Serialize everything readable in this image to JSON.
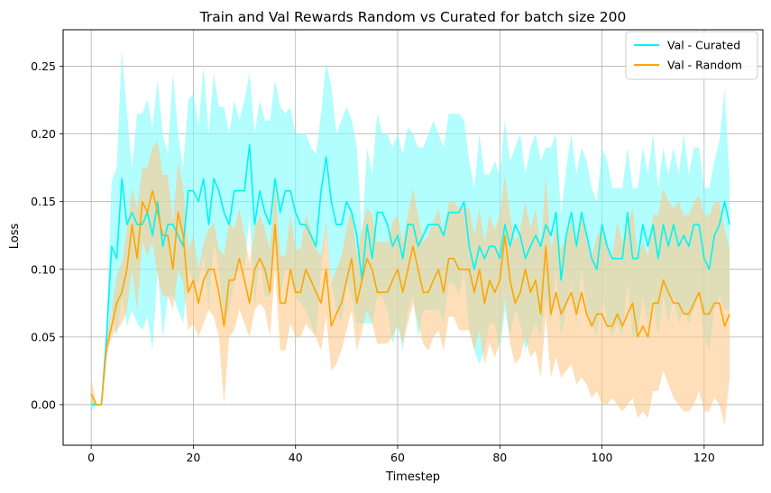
{
  "chart_data": {
    "type": "line",
    "title": "Train and Val Rewards Random vs Curated for batch size 200",
    "xlabel": "Timestep",
    "ylabel": "Loss",
    "xlim": [
      -5.5,
      131.5
    ],
    "ylim": [
      -0.03,
      0.277
    ],
    "xticks": [
      0,
      20,
      40,
      60,
      80,
      100,
      120
    ],
    "yticks": [
      0.0,
      0.05,
      0.1,
      0.15,
      0.2,
      0.25
    ],
    "grid": true,
    "legend_position": "top-right",
    "series": [
      {
        "name": "Val - Curated",
        "color": "#00f5f5",
        "band_color": "#7ffbfb",
        "values": [
          0.0,
          0.0,
          0.0,
          0.05,
          0.117,
          0.108,
          0.167,
          0.133,
          0.142,
          0.133,
          0.133,
          0.142,
          0.125,
          0.15,
          0.117,
          0.133,
          0.133,
          0.125,
          0.117,
          0.158,
          0.158,
          0.15,
          0.167,
          0.133,
          0.167,
          0.158,
          0.142,
          0.133,
          0.158,
          0.158,
          0.158,
          0.192,
          0.133,
          0.158,
          0.142,
          0.133,
          0.167,
          0.142,
          0.158,
          0.158,
          0.142,
          0.133,
          0.133,
          0.125,
          0.117,
          0.158,
          0.183,
          0.15,
          0.133,
          0.133,
          0.15,
          0.142,
          0.125,
          0.092,
          0.133,
          0.108,
          0.142,
          0.142,
          0.133,
          0.117,
          0.125,
          0.108,
          0.133,
          0.133,
          0.117,
          0.125,
          0.133,
          0.133,
          0.133,
          0.125,
          0.142,
          0.142,
          0.142,
          0.15,
          0.117,
          0.1,
          0.117,
          0.108,
          0.117,
          0.117,
          0.108,
          0.133,
          0.117,
          0.133,
          0.125,
          0.108,
          0.117,
          0.125,
          0.117,
          0.133,
          0.125,
          0.142,
          0.092,
          0.125,
          0.142,
          0.117,
          0.142,
          0.125,
          0.108,
          0.1,
          0.133,
          0.117,
          0.108,
          0.108,
          0.108,
          0.142,
          0.108,
          0.108,
          0.133,
          0.117,
          0.133,
          0.108,
          0.133,
          0.117,
          0.133,
          0.117,
          0.125,
          0.117,
          0.133,
          0.133,
          0.108,
          0.1,
          0.125,
          0.133,
          0.15,
          0.133
        ],
        "lower": [
          -0.005,
          0.0,
          0.0,
          0.04,
          0.07,
          0.05,
          0.08,
          0.058,
          0.07,
          0.06,
          0.055,
          0.065,
          0.04,
          0.1,
          0.05,
          0.08,
          0.08,
          0.07,
          0.06,
          0.1,
          0.09,
          0.09,
          0.11,
          0.07,
          0.12,
          0.1,
          0.06,
          0.07,
          0.09,
          0.11,
          0.1,
          0.14,
          0.07,
          0.11,
          0.08,
          0.08,
          0.12,
          0.08,
          0.1,
          0.1,
          0.08,
          0.075,
          0.07,
          0.06,
          0.05,
          0.1,
          0.13,
          0.09,
          0.07,
          0.06,
          0.09,
          0.08,
          0.06,
          0.06,
          0.06,
          0.06,
          0.08,
          0.08,
          0.07,
          0.045,
          0.06,
          0.04,
          0.07,
          0.08,
          0.05,
          0.07,
          0.07,
          0.07,
          0.07,
          0.06,
          0.09,
          0.09,
          0.08,
          0.1,
          0.055,
          0.04,
          0.03,
          0.04,
          0.06,
          0.06,
          0.04,
          0.07,
          0.05,
          0.07,
          0.06,
          0.04,
          0.05,
          0.06,
          0.05,
          0.08,
          0.06,
          0.1,
          0.05,
          0.07,
          0.09,
          0.06,
          0.1,
          0.07,
          0.06,
          0.05,
          0.08,
          0.06,
          0.05,
          0.06,
          0.05,
          0.09,
          0.05,
          0.05,
          0.08,
          0.06,
          0.08,
          0.05,
          0.08,
          0.06,
          0.08,
          0.06,
          0.07,
          0.06,
          0.07,
          0.08,
          0.05,
          0.04,
          0.07,
          0.08,
          0.07,
          0.07
        ],
        "upper": [
          0.005,
          0.0,
          0.0,
          0.06,
          0.165,
          0.175,
          0.262,
          0.215,
          0.175,
          0.215,
          0.215,
          0.225,
          0.205,
          0.24,
          0.2,
          0.185,
          0.245,
          0.2,
          0.175,
          0.225,
          0.23,
          0.205,
          0.25,
          0.2,
          0.245,
          0.22,
          0.22,
          0.2,
          0.225,
          0.21,
          0.225,
          0.245,
          0.2,
          0.225,
          0.21,
          0.21,
          0.24,
          0.22,
          0.215,
          0.22,
          0.2,
          0.2,
          0.2,
          0.19,
          0.185,
          0.215,
          0.253,
          0.235,
          0.2,
          0.21,
          0.22,
          0.21,
          0.19,
          0.125,
          0.19,
          0.17,
          0.215,
          0.2,
          0.2,
          0.19,
          0.2,
          0.185,
          0.205,
          0.2,
          0.19,
          0.19,
          0.2,
          0.21,
          0.2,
          0.19,
          0.215,
          0.215,
          0.215,
          0.21,
          0.18,
          0.16,
          0.2,
          0.17,
          0.17,
          0.18,
          0.17,
          0.21,
          0.18,
          0.19,
          0.2,
          0.17,
          0.19,
          0.2,
          0.18,
          0.19,
          0.19,
          0.2,
          0.14,
          0.175,
          0.2,
          0.17,
          0.19,
          0.18,
          0.16,
          0.15,
          0.19,
          0.18,
          0.16,
          0.16,
          0.16,
          0.19,
          0.16,
          0.16,
          0.19,
          0.17,
          0.2,
          0.16,
          0.19,
          0.17,
          0.19,
          0.17,
          0.2,
          0.17,
          0.19,
          0.19,
          0.16,
          0.16,
          0.18,
          0.195,
          0.233,
          0.165
        ]
      },
      {
        "name": "Val - Random",
        "color": "#ffa500",
        "band_color": "#fdc98a",
        "values": [
          0.008,
          0.0,
          0.0,
          0.042,
          0.058,
          0.075,
          0.083,
          0.1,
          0.133,
          0.108,
          0.15,
          0.142,
          0.158,
          0.142,
          0.125,
          0.125,
          0.1,
          0.142,
          0.125,
          0.083,
          0.092,
          0.075,
          0.092,
          0.1,
          0.1,
          0.083,
          0.058,
          0.092,
          0.092,
          0.108,
          0.092,
          0.075,
          0.1,
          0.108,
          0.1,
          0.083,
          0.133,
          0.075,
          0.075,
          0.1,
          0.083,
          0.083,
          0.1,
          0.092,
          0.083,
          0.075,
          0.1,
          0.058,
          0.067,
          0.075,
          0.092,
          0.108,
          0.075,
          0.092,
          0.108,
          0.1,
          0.083,
          0.083,
          0.083,
          0.092,
          0.1,
          0.083,
          0.1,
          0.117,
          0.1,
          0.083,
          0.083,
          0.092,
          0.1,
          0.083,
          0.108,
          0.108,
          0.1,
          0.1,
          0.1,
          0.083,
          0.1,
          0.075,
          0.092,
          0.083,
          0.092,
          0.125,
          0.092,
          0.075,
          0.083,
          0.1,
          0.083,
          0.092,
          0.067,
          0.117,
          0.067,
          0.083,
          0.067,
          0.075,
          0.083,
          0.067,
          0.083,
          0.067,
          0.058,
          0.067,
          0.067,
          0.058,
          0.058,
          0.067,
          0.058,
          0.067,
          0.075,
          0.05,
          0.058,
          0.05,
          0.075,
          0.075,
          0.092,
          0.083,
          0.075,
          0.075,
          0.067,
          0.067,
          0.075,
          0.083,
          0.067,
          0.067,
          0.075,
          0.075,
          0.058,
          0.067
        ],
        "lower": [
          0.0,
          0.0,
          0.0,
          0.035,
          0.05,
          0.055,
          0.06,
          0.07,
          0.1,
          0.07,
          0.12,
          0.11,
          0.12,
          0.095,
          0.08,
          0.08,
          0.07,
          0.1,
          0.09,
          0.055,
          0.06,
          0.05,
          0.06,
          0.07,
          0.065,
          0.05,
          0.0,
          0.05,
          0.055,
          0.07,
          0.06,
          0.05,
          0.07,
          0.075,
          0.07,
          0.05,
          0.1,
          0.04,
          0.04,
          0.06,
          0.05,
          0.05,
          0.06,
          0.055,
          0.05,
          0.04,
          0.065,
          0.025,
          0.03,
          0.04,
          0.055,
          0.07,
          0.04,
          0.055,
          0.07,
          0.06,
          0.045,
          0.045,
          0.045,
          0.05,
          0.06,
          0.045,
          0.06,
          0.075,
          0.06,
          0.045,
          0.04,
          0.05,
          0.055,
          0.04,
          0.065,
          0.065,
          0.055,
          0.055,
          0.055,
          0.04,
          0.055,
          0.03,
          0.045,
          0.035,
          0.045,
          0.08,
          0.045,
          0.03,
          0.035,
          0.05,
          0.035,
          0.04,
          0.02,
          0.065,
          0.02,
          0.035,
          0.02,
          0.025,
          0.03,
          0.015,
          0.02,
          0.015,
          0.005,
          0.01,
          0.0,
          0.0,
          0.005,
          0.0,
          -0.005,
          0.0,
          0.005,
          -0.01,
          -0.005,
          -0.01,
          0.01,
          0.01,
          0.025,
          0.015,
          0.005,
          0.0,
          -0.005,
          -0.005,
          0.0,
          0.01,
          -0.005,
          -0.005,
          0.005,
          0.0,
          -0.015,
          0.02
        ],
        "upper": [
          0.02,
          0.0,
          0.0,
          0.05,
          0.07,
          0.095,
          0.105,
          0.13,
          0.16,
          0.145,
          0.175,
          0.175,
          0.19,
          0.195,
          0.17,
          0.17,
          0.135,
          0.18,
          0.16,
          0.115,
          0.125,
          0.1,
          0.12,
          0.13,
          0.135,
          0.115,
          0.11,
          0.135,
          0.13,
          0.145,
          0.125,
          0.105,
          0.13,
          0.14,
          0.13,
          0.115,
          0.165,
          0.11,
          0.11,
          0.14,
          0.115,
          0.115,
          0.14,
          0.13,
          0.115,
          0.11,
          0.135,
          0.09,
          0.1,
          0.11,
          0.13,
          0.145,
          0.11,
          0.13,
          0.145,
          0.14,
          0.12,
          0.12,
          0.12,
          0.135,
          0.14,
          0.12,
          0.14,
          0.16,
          0.14,
          0.12,
          0.125,
          0.135,
          0.145,
          0.125,
          0.15,
          0.15,
          0.145,
          0.145,
          0.145,
          0.125,
          0.145,
          0.12,
          0.14,
          0.13,
          0.14,
          0.17,
          0.14,
          0.12,
          0.13,
          0.15,
          0.13,
          0.145,
          0.115,
          0.17,
          0.115,
          0.13,
          0.115,
          0.125,
          0.135,
          0.12,
          0.145,
          0.12,
          0.11,
          0.125,
          0.13,
          0.115,
          0.11,
          0.135,
          0.12,
          0.135,
          0.145,
          0.11,
          0.12,
          0.11,
          0.14,
          0.14,
          0.16,
          0.15,
          0.145,
          0.15,
          0.14,
          0.14,
          0.15,
          0.155,
          0.14,
          0.14,
          0.15,
          0.15,
          0.13,
          0.115
        ]
      }
    ]
  }
}
